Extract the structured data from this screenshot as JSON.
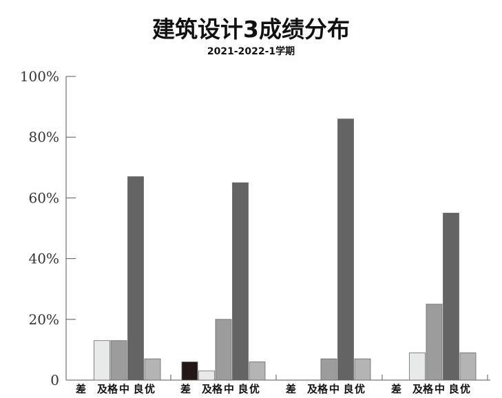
{
  "chart_data": {
    "type": "bar",
    "title": "建筑设计3成绩分布",
    "subtitle": "2021-2022-1学期",
    "xlabel": "",
    "ylabel": "",
    "ylim": [
      0,
      100
    ],
    "yticks": [
      "0",
      "20%",
      "40%",
      "60%",
      "80%",
      "100%"
    ],
    "categories": [
      "差",
      "及格",
      "中",
      "良",
      "优"
    ],
    "grid": false,
    "colors": [
      "#231815",
      "#e8eaea",
      "#9c9c9c",
      "#646464",
      "#b4b4b4"
    ],
    "groups": [
      {
        "values": [
          0,
          13,
          13,
          67,
          7
        ]
      },
      {
        "values": [
          6,
          3,
          20,
          65,
          6
        ]
      },
      {
        "values": [
          0,
          0,
          7,
          86,
          7
        ]
      },
      {
        "values": [
          0,
          9,
          25,
          55,
          9
        ]
      }
    ]
  }
}
